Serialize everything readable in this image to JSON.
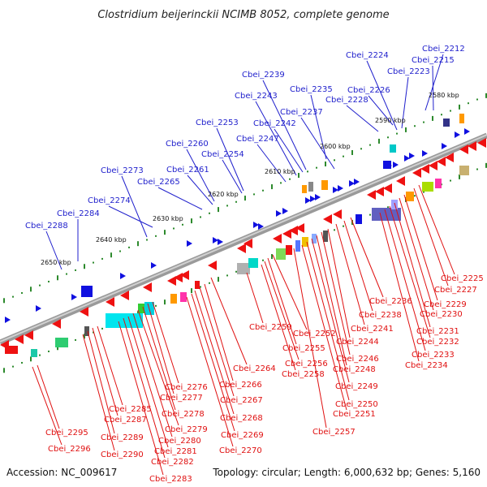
{
  "title": "Clostridium beijerinckii NCIMB 8052, complete genome",
  "accession": "Accession: NC_009617",
  "summary": "Topology: circular; Length: 6,000,632 bp; Genes: 5,160",
  "colors": {
    "background": "#ffffff",
    "forward_strand_labels": "#1f1fcc",
    "reverse_strand_labels": "#e01010",
    "backbone": "#808080",
    "tick_dots": "#2d8a2d",
    "forward_genes": "#1010e0",
    "reverse_genes": "#ee1111"
  },
  "ticks": [
    "2650 kbp",
    "2640 kbp",
    "2630 kbp",
    "2620 kbp",
    "2610 kbp",
    "2600 kbp",
    "2590 kbp",
    "2580 kbp"
  ],
  "forward_labels": [
    "Cbei_2212",
    "Cbei_2215",
    "Cbei_2223",
    "Cbei_2224",
    "Cbei_2226",
    "Cbei_2228",
    "Cbei_2235",
    "Cbei_2237",
    "Cbei_2239",
    "Cbei_2242",
    "Cbei_2243",
    "Cbei_2247",
    "Cbei_2253",
    "Cbei_2254",
    "Cbei_2260",
    "Cbei_2261",
    "Cbei_2265",
    "Cbei_2273",
    "Cbei_2274",
    "Cbei_2284",
    "Cbei_2288"
  ],
  "reverse_labels": [
    "Cbei_2225",
    "Cbei_2227",
    "Cbei_2229",
    "Cbei_2230",
    "Cbei_2231",
    "Cbei_2232",
    "Cbei_2233",
    "Cbei_2234",
    "Cbei_2236",
    "Cbei_2238",
    "Cbei_2241",
    "Cbei_2244",
    "Cbei_2246",
    "Cbei_2248",
    "Cbei_2249",
    "Cbei_2250",
    "Cbei_2251",
    "Cbei_2252",
    "Cbei_2255",
    "Cbei_2256",
    "Cbei_2257",
    "Cbei_2258",
    "Cbei_2259",
    "Cbei_2264",
    "Cbei_2266",
    "Cbei_2267",
    "Cbei_2268",
    "Cbei_2269",
    "Cbei_2270",
    "Cbei_2276",
    "Cbei_2277",
    "Cbei_2278",
    "Cbei_2279",
    "Cbei_2280",
    "Cbei_2281",
    "Cbei_2282",
    "Cbei_2283",
    "Cbei_2285",
    "Cbei_2287",
    "Cbei_2289",
    "Cbei_2290",
    "Cbei_2295",
    "Cbei_2296"
  ]
}
